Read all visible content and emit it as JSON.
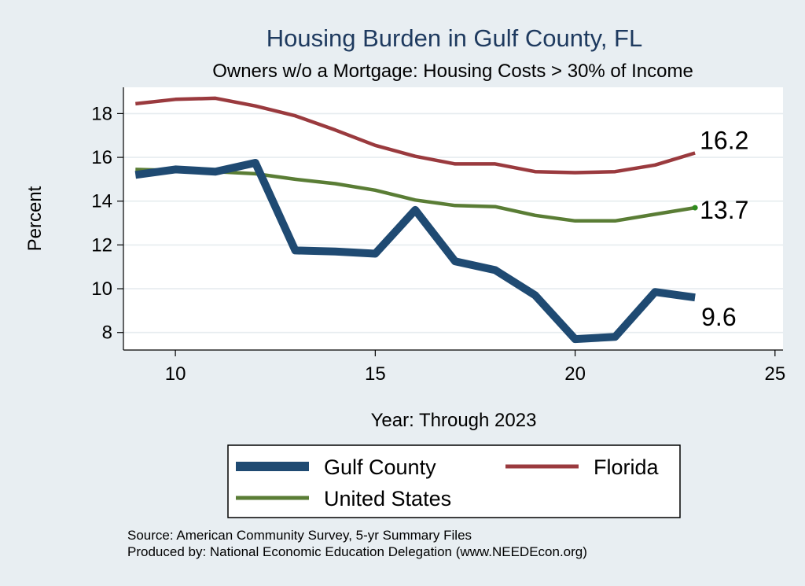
{
  "chart_data": {
    "type": "line",
    "title": "Housing Burden in Gulf County, FL",
    "subtitle": "Owners w/o a Mortgage: Housing Costs > 30% of Income",
    "xlabel": "Year: Through 2023",
    "ylabel": "Percent",
    "xlim": [
      8.7,
      25.2
    ],
    "ylim": [
      7.2,
      19.2
    ],
    "xticks": [
      10,
      15,
      20,
      25
    ],
    "yticks": [
      8,
      10,
      12,
      14,
      16,
      18
    ],
    "grid": true,
    "legend_position": "bottom",
    "x": [
      9,
      10,
      11,
      12,
      13,
      14,
      15,
      16,
      17,
      18,
      19,
      20,
      21,
      22,
      23
    ],
    "series": [
      {
        "name": "Gulf County",
        "color": "#1f4a72",
        "values": [
          15.2,
          15.45,
          15.35,
          15.75,
          11.75,
          11.7,
          11.6,
          13.6,
          11.25,
          10.85,
          9.7,
          7.7,
          7.8,
          9.85,
          9.6
        ],
        "end_label": "9.6"
      },
      {
        "name": "Florida",
        "color": "#9a3a3e",
        "values": [
          18.45,
          18.65,
          18.7,
          18.35,
          17.9,
          17.25,
          16.55,
          16.05,
          15.7,
          15.7,
          15.35,
          15.3,
          15.35,
          15.65,
          16.2
        ],
        "end_label": "16.2"
      },
      {
        "name": "United States",
        "color": "#5a7d35",
        "values": [
          15.45,
          15.4,
          15.35,
          15.25,
          15.0,
          14.8,
          14.5,
          14.05,
          13.8,
          13.75,
          13.35,
          13.1,
          13.1,
          13.4,
          13.7
        ],
        "end_label": "13.7"
      }
    ],
    "source_lines": [
      "Source: American Community Survey, 5-yr Summary Files",
      "Produced by: National Economic Education Delegation (www.NEEDEcon.org)"
    ]
  }
}
